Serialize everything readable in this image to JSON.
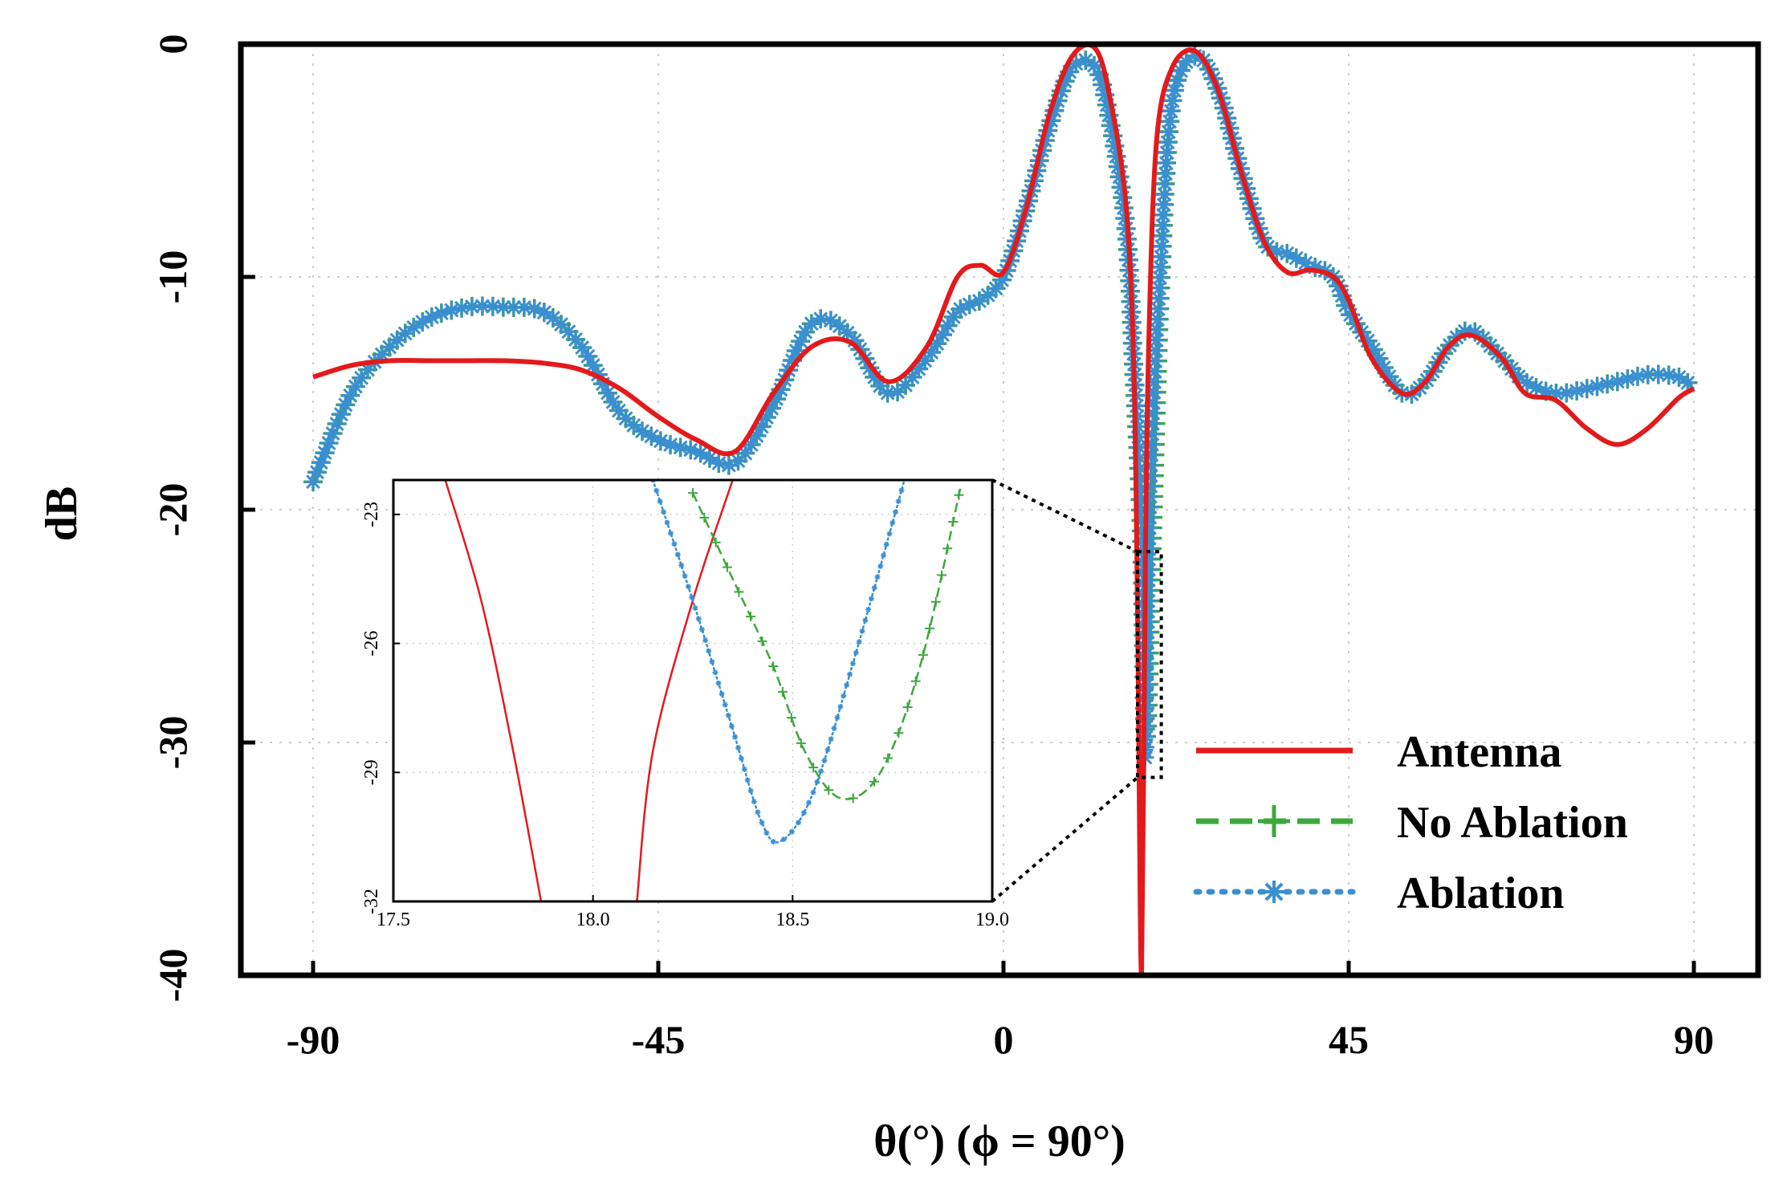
{
  "chart_data": {
    "type": "line",
    "xlabel": "θ(°) (ϕ = 90°)",
    "ylabel": "dB",
    "xlim": [
      -90,
      90
    ],
    "ylim": [
      -40,
      0
    ],
    "xticks": [
      -90,
      -45,
      0,
      45,
      90
    ],
    "xtick_labels": [
      "-90",
      "-45",
      "0",
      "45",
      "90"
    ],
    "yticks": [
      0,
      -10,
      -20,
      -30,
      -40
    ],
    "ytick_labels": [
      "0",
      "-10",
      "-20",
      "-30",
      "-40"
    ],
    "grid": true,
    "legend_position": "bottom-right",
    "colors": {
      "antenna": "#e31a1c",
      "no_ablation": "#3ca83c",
      "ablation": "#3a8fd0",
      "frame": "#000000",
      "grid": "#cfcfcf"
    },
    "series": [
      {
        "name": "Antenna",
        "style": "solid",
        "x": [
          -90,
          -85,
          -80,
          -75,
          -70,
          -65,
          -60,
          -55,
          -50,
          -45,
          -40,
          -35,
          -30,
          -25,
          -20,
          -15,
          -10,
          -6,
          -3,
          0,
          3,
          6,
          9,
          12,
          14,
          16,
          17,
          17.5,
          18,
          18.5,
          19,
          20,
          22,
          25,
          28,
          31,
          34,
          37,
          40,
          43,
          45,
          48,
          52,
          55,
          58,
          61,
          65,
          68,
          72,
          76,
          80,
          84,
          88,
          90
        ],
        "y": [
          -14.3,
          -13.8,
          -13.6,
          -13.6,
          -13.6,
          -13.6,
          -13.7,
          -14.0,
          -14.8,
          -16.0,
          -17.0,
          -17.5,
          -15.0,
          -13.0,
          -12.8,
          -14.5,
          -13.0,
          -10.0,
          -9.5,
          -9.8,
          -7.0,
          -3.0,
          -0.5,
          -0.2,
          -2.5,
          -7.0,
          -14.0,
          -25.0,
          -40.0,
          -22.0,
          -12.0,
          -4.0,
          -1.0,
          -0.3,
          -2.0,
          -5.5,
          -8.5,
          -9.8,
          -9.7,
          -10.0,
          -11.0,
          -13.5,
          -15.0,
          -14.5,
          -13.0,
          -12.5,
          -13.5,
          -15.0,
          -15.3,
          -16.5,
          -17.2,
          -16.5,
          -15.2,
          -14.8
        ]
      },
      {
        "name": "No Ablation",
        "style": "dashed-plus",
        "x": [
          -90,
          -85,
          -80,
          -75,
          -70,
          -65,
          -60,
          -55,
          -50,
          -45,
          -40,
          -35,
          -30,
          -25,
          -20,
          -15,
          -10,
          -6,
          -3,
          0,
          3,
          6,
          9,
          12,
          14,
          16,
          17,
          18,
          18.6,
          19.5,
          20.5,
          22,
          25,
          28,
          31,
          34,
          37,
          40,
          43,
          45,
          48,
          52,
          55,
          58,
          61,
          65,
          68,
          72,
          76,
          80,
          84,
          88,
          90
        ],
        "y": [
          -18.8,
          -15.0,
          -13.0,
          -11.8,
          -11.3,
          -11.3,
          -11.5,
          -13.0,
          -15.8,
          -17.0,
          -17.5,
          -18.0,
          -15.5,
          -12.0,
          -12.5,
          -15.0,
          -13.5,
          -11.5,
          -11.0,
          -10.0,
          -7.0,
          -3.5,
          -1.0,
          -1.0,
          -3.5,
          -8.0,
          -14.0,
          -21.0,
          -29.8,
          -20.0,
          -10.0,
          -2.5,
          -0.5,
          -2.0,
          -5.5,
          -8.5,
          -9.0,
          -9.5,
          -10.0,
          -11.5,
          -13.0,
          -15.0,
          -14.5,
          -13.0,
          -12.3,
          -13.5,
          -14.5,
          -15.0,
          -14.8,
          -14.5,
          -14.2,
          -14.3,
          -14.8
        ]
      },
      {
        "name": "Ablation",
        "style": "dotted-star",
        "x": [
          -90,
          -85,
          -80,
          -75,
          -70,
          -65,
          -60,
          -55,
          -50,
          -45,
          -40,
          -35,
          -30,
          -25,
          -20,
          -15,
          -10,
          -6,
          -3,
          0,
          3,
          6,
          9,
          12,
          14,
          16,
          17,
          18,
          18.45,
          19.2,
          20.5,
          22,
          25,
          28,
          31,
          34,
          37,
          40,
          43,
          45,
          48,
          52,
          55,
          58,
          61,
          65,
          68,
          72,
          76,
          80,
          84,
          88,
          90
        ],
        "y": [
          -18.8,
          -15.0,
          -13.0,
          -11.8,
          -11.3,
          -11.3,
          -11.5,
          -13.0,
          -15.8,
          -17.0,
          -17.5,
          -18.0,
          -15.5,
          -12.0,
          -12.5,
          -15.0,
          -13.5,
          -11.5,
          -11.0,
          -10.0,
          -7.0,
          -3.5,
          -1.0,
          -1.0,
          -3.5,
          -8.0,
          -13.5,
          -20.0,
          -30.7,
          -18.5,
          -9.5,
          -2.5,
          -0.5,
          -2.0,
          -5.5,
          -8.5,
          -9.0,
          -9.5,
          -10.0,
          -11.5,
          -13.0,
          -15.0,
          -14.5,
          -13.0,
          -12.3,
          -13.5,
          -14.5,
          -15.0,
          -14.8,
          -14.5,
          -14.2,
          -14.3,
          -14.8
        ]
      }
    ],
    "inset": {
      "xlim": [
        17.5,
        19.0
      ],
      "ylim": [
        -32,
        -22.2
      ],
      "xticks": [
        17.5,
        18.0,
        18.5,
        19.0
      ],
      "xtick_labels": [
        "17.5",
        "18.0",
        "18.5",
        "19.0"
      ],
      "yticks": [
        -23,
        -26,
        -29,
        -32
      ],
      "ytick_labels": [
        "-23",
        "-26",
        "-29",
        "-32"
      ],
      "zoom_region": {
        "x": [
          17.9,
          18.9
        ],
        "y": [
          -31.5,
          -21.8
        ]
      },
      "series": [
        {
          "name": "Antenna",
          "x": [
            17.63,
            17.72,
            17.8,
            17.87
          ],
          "y": [
            -22.2,
            -25.0,
            -28.5,
            -32.0
          ]
        },
        {
          "name": "Antenna",
          "x": [
            18.11,
            18.15,
            18.25,
            18.35
          ],
          "y": [
            -32.0,
            -28.5,
            -25.0,
            -22.2
          ]
        },
        {
          "name": "No Ablation",
          "x": [
            18.25,
            18.35,
            18.45,
            18.53,
            18.62,
            18.72,
            18.82,
            18.92
          ],
          "y": [
            -22.5,
            -24.5,
            -26.5,
            -28.5,
            -29.6,
            -29.0,
            -26.5,
            -22.4
          ]
        },
        {
          "name": "Ablation",
          "x": [
            18.15,
            18.25,
            18.35,
            18.42,
            18.47,
            18.55,
            18.65,
            18.78
          ],
          "y": [
            -22.2,
            -25.0,
            -28.0,
            -30.1,
            -30.6,
            -29.5,
            -26.5,
            -22.2
          ]
        }
      ]
    }
  }
}
